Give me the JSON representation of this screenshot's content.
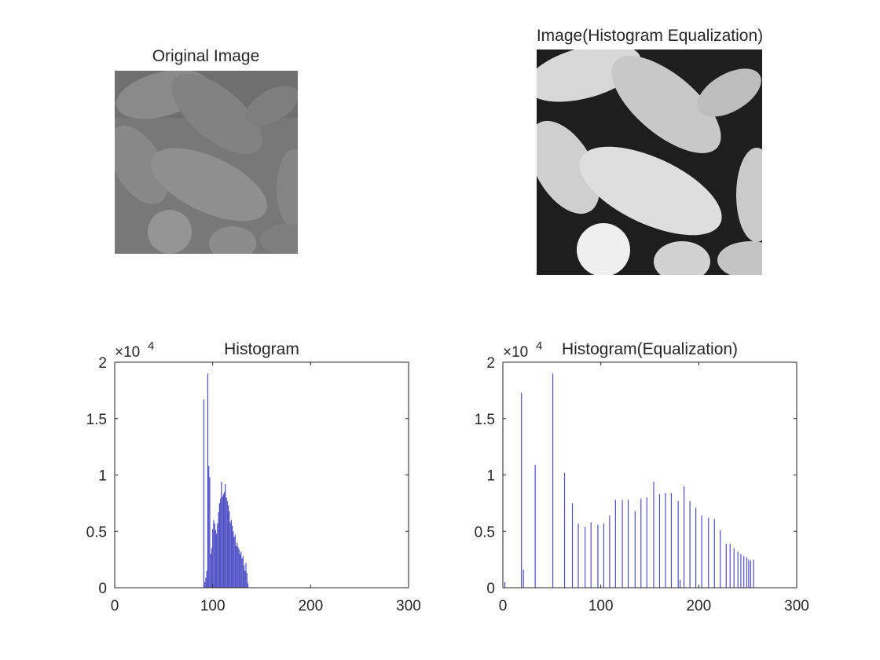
{
  "panels": {
    "original": {
      "title": "Original Image"
    },
    "equalized": {
      "title": "Image(Histogram Equalization)"
    }
  },
  "colors": {
    "bar": "#4f4fc6",
    "axis": "#262626",
    "text": "#262626"
  },
  "chart_data": [
    {
      "type": "bar",
      "title": "Histogram",
      "xlim": [
        0,
        300
      ],
      "ylim": [
        0,
        20000
      ],
      "xticks": [
        0,
        100,
        200,
        300
      ],
      "yticks": [
        0,
        0.5,
        1,
        1.5,
        2
      ],
      "y_exponent_label": "×10",
      "y_exponent": "4",
      "grid": false,
      "x": [
        91,
        92,
        93,
        94,
        95,
        96,
        97,
        98,
        99,
        100,
        101,
        102,
        103,
        104,
        105,
        106,
        107,
        108,
        109,
        110,
        111,
        112,
        113,
        114,
        115,
        116,
        117,
        118,
        119,
        120,
        121,
        122,
        123,
        124,
        125,
        126,
        127,
        128,
        129,
        130,
        131,
        132,
        133,
        134,
        135,
        136
      ],
      "values": [
        16700,
        500,
        900,
        1500,
        19000,
        10800,
        9800,
        3000,
        3500,
        5200,
        6000,
        5700,
        5100,
        4800,
        5700,
        6700,
        7500,
        7900,
        9400,
        8100,
        8300,
        8500,
        9200,
        8000,
        7700,
        7300,
        6800,
        5800,
        6000,
        5500,
        5000,
        4500,
        4700,
        3700,
        4000,
        3600,
        3400,
        3000,
        3200,
        2600,
        2800,
        2000,
        1500,
        2200,
        1300,
        400
      ]
    },
    {
      "type": "bar",
      "title": "Histogram(Equalization)",
      "xlim": [
        0,
        300
      ],
      "ylim": [
        0,
        20000
      ],
      "xticks": [
        0,
        100,
        200,
        300
      ],
      "yticks": [
        0,
        0.5,
        1,
        1.5,
        2
      ],
      "y_exponent_label": "×10",
      "y_exponent": "4",
      "grid": false,
      "x": [
        2,
        19,
        21,
        33,
        51,
        63,
        71,
        77,
        84,
        90,
        97,
        103,
        109,
        115,
        122,
        128,
        135,
        141,
        147,
        154,
        160,
        166,
        172,
        179,
        181,
        185,
        191,
        197,
        203,
        210,
        216,
        222,
        228,
        232,
        236,
        240,
        243,
        246,
        249,
        251,
        253,
        256
      ],
      "values": [
        500,
        17300,
        1600,
        10900,
        19000,
        10200,
        7500,
        5700,
        5400,
        5800,
        5600,
        5700,
        6400,
        7800,
        7800,
        7800,
        6800,
        7900,
        8000,
        9400,
        8300,
        8400,
        8400,
        7700,
        700,
        9000,
        7700,
        7100,
        6400,
        6200,
        6100,
        5100,
        3900,
        3900,
        3500,
        3200,
        3000,
        2800,
        2700,
        2500,
        2400,
        2500
      ]
    }
  ]
}
